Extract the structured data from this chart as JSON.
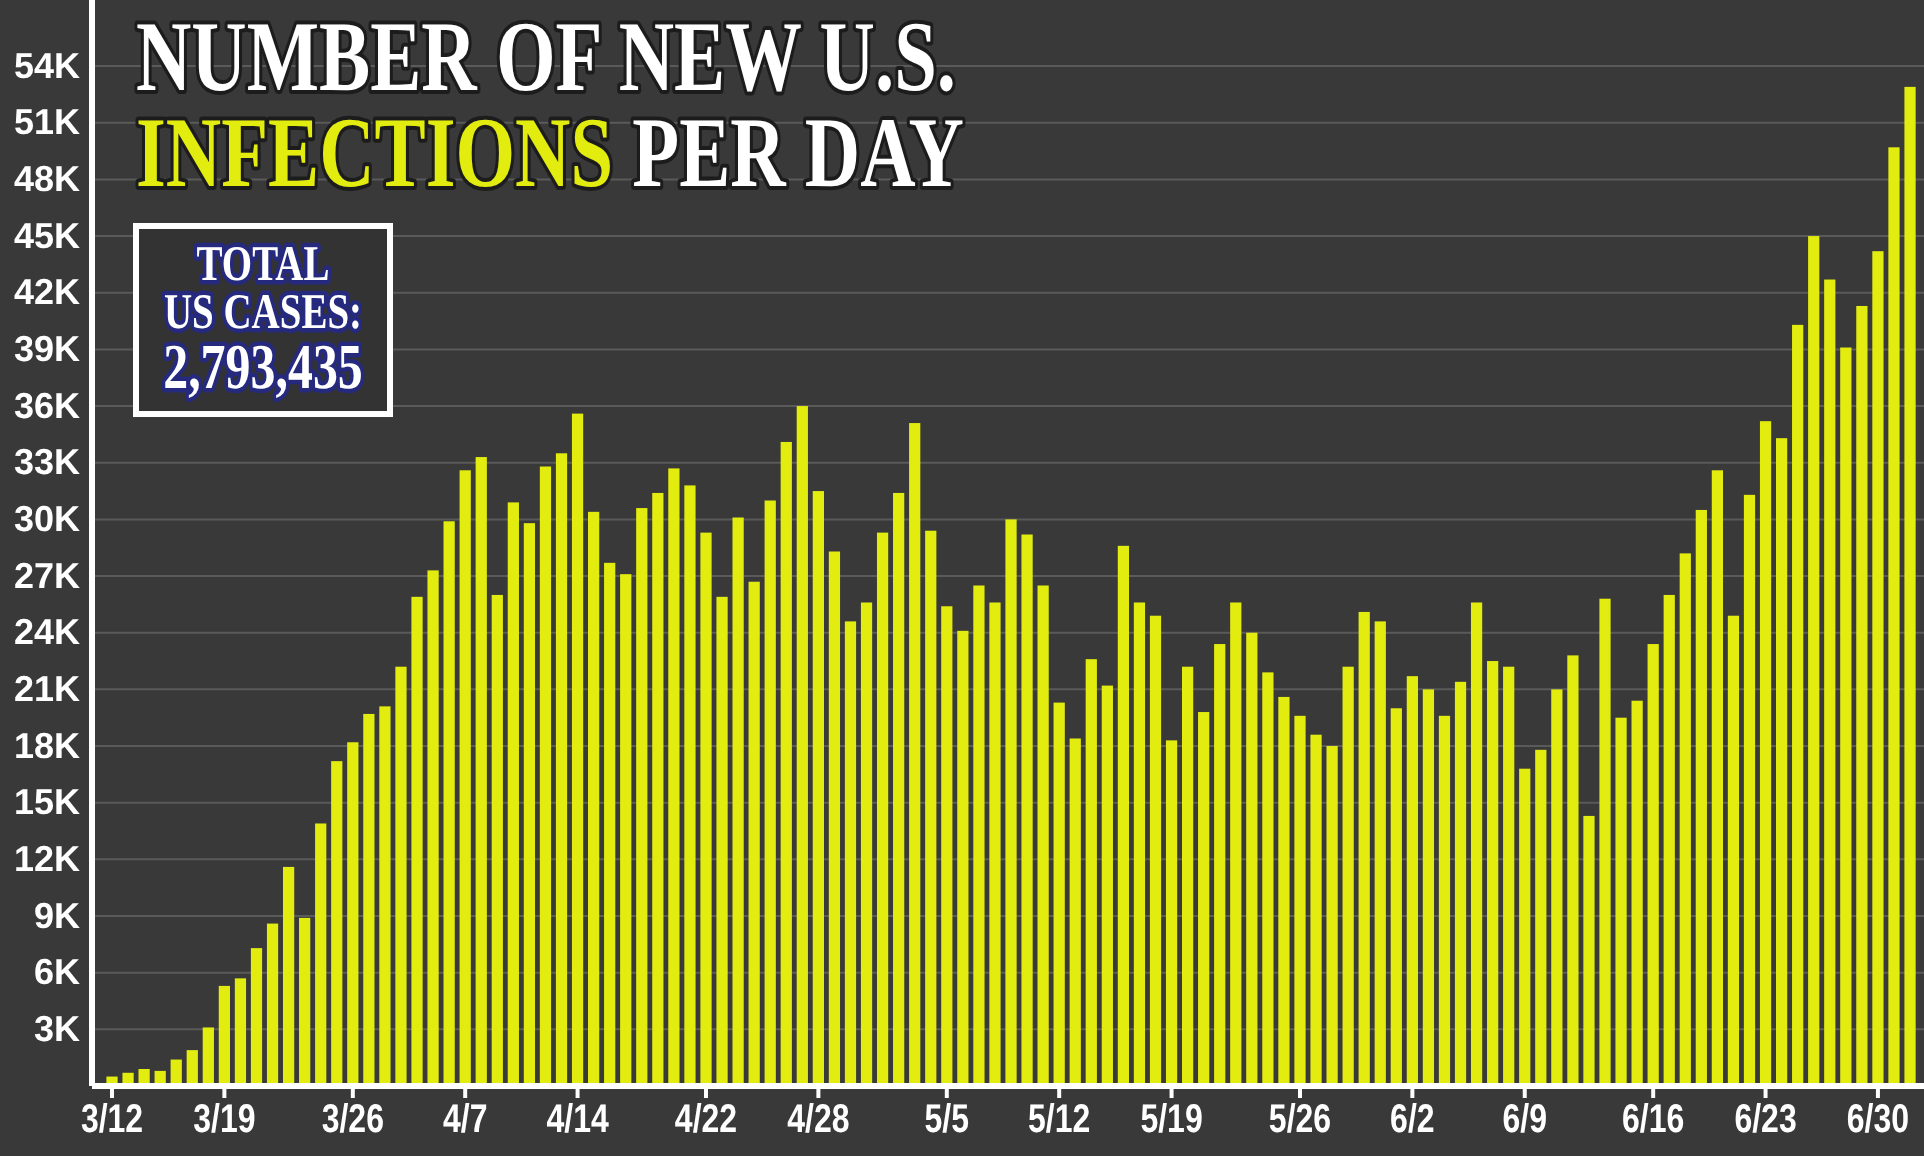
{
  "chart_data": {
    "type": "bar",
    "title": "NUMBER OF NEW U.S. INFECTIONS PER DAY",
    "annotations": [
      "TOTAL US CASES: 2,793,435"
    ],
    "categories": [
      "3/12",
      null,
      null,
      null,
      null,
      null,
      null,
      "3/19",
      null,
      null,
      null,
      null,
      null,
      null,
      null,
      "3/26",
      null,
      null,
      null,
      null,
      null,
      null,
      "4/7",
      null,
      null,
      null,
      null,
      null,
      null,
      "4/14",
      null,
      null,
      null,
      null,
      null,
      null,
      null,
      "4/22",
      null,
      null,
      null,
      null,
      null,
      null,
      "4/28",
      null,
      null,
      null,
      null,
      null,
      null,
      null,
      "5/5",
      null,
      null,
      null,
      null,
      null,
      null,
      "5/12",
      null,
      null,
      null,
      null,
      null,
      null,
      "5/19",
      null,
      null,
      null,
      null,
      null,
      null,
      null,
      "5/26",
      null,
      null,
      null,
      null,
      null,
      null,
      "6/2",
      null,
      null,
      null,
      null,
      null,
      null,
      "6/9",
      null,
      null,
      null,
      null,
      null,
      null,
      null,
      "6/16",
      null,
      null,
      null,
      null,
      null,
      null,
      "6/23",
      null,
      null,
      null,
      null,
      null,
      null,
      "6/30",
      null,
      null
    ],
    "values": [
      500,
      700,
      900,
      800,
      1400,
      1900,
      3100,
      5300,
      5700,
      7300,
      8600,
      11600,
      8900,
      13900,
      17200,
      18200,
      19700,
      20100,
      22200,
      25900,
      27300,
      29900,
      32600,
      33300,
      26000,
      30900,
      29800,
      32800,
      33500,
      35600,
      30400,
      27700,
      27100,
      30600,
      31400,
      32700,
      31800,
      29300,
      25900,
      30100,
      26700,
      31000,
      34100,
      36000,
      31500,
      28300,
      24600,
      25600,
      29300,
      31400,
      35100,
      29400,
      25400,
      24100,
      26500,
      25600,
      30000,
      29200,
      26500,
      20300,
      18400,
      22600,
      21200,
      28600,
      25600,
      24900,
      18300,
      22200,
      19800,
      23400,
      25600,
      24000,
      21900,
      20600,
      19600,
      18600,
      18000,
      22200,
      25100,
      24600,
      20000,
      21700,
      21000,
      19600,
      21400,
      25600,
      22500,
      22200,
      16800,
      17800,
      21000,
      22800,
      14300,
      25800,
      19500,
      20400,
      23400,
      26000,
      28200,
      30500,
      32600,
      24900,
      31300,
      35200,
      34300,
      40300,
      45000,
      42700,
      39100,
      41300,
      44200,
      49700,
      52900
    ],
    "color": "#e3ec0f",
    "ylim": [
      0,
      57500
    ],
    "yticks": [
      {
        "value": 3000,
        "label": "3K"
      },
      {
        "value": 6000,
        "label": "6K"
      },
      {
        "value": 9000,
        "label": "9K"
      },
      {
        "value": 12000,
        "label": "12K"
      },
      {
        "value": 15000,
        "label": "15K"
      },
      {
        "value": 18000,
        "label": "18K"
      },
      {
        "value": 21000,
        "label": "21K"
      },
      {
        "value": 24000,
        "label": "24K"
      },
      {
        "value": 27000,
        "label": "27K"
      },
      {
        "value": 30000,
        "label": "30K"
      },
      {
        "value": 33000,
        "label": "33K"
      },
      {
        "value": 36000,
        "label": "36K"
      },
      {
        "value": 39000,
        "label": "39K"
      },
      {
        "value": 42000,
        "label": "42K"
      },
      {
        "value": 45000,
        "label": "45K"
      },
      {
        "value": 48000,
        "label": "48K"
      },
      {
        "value": 51000,
        "label": "51K"
      },
      {
        "value": 54000,
        "label": "54K"
      }
    ],
    "grid": "y"
  }
}
